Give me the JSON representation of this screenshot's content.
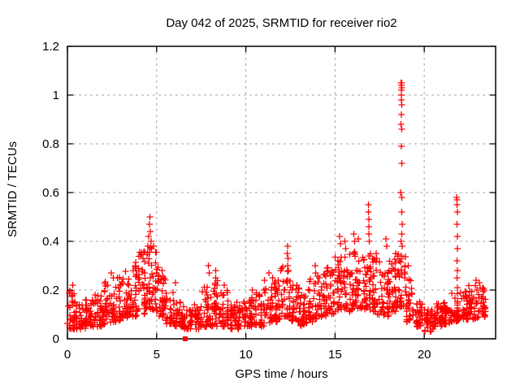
{
  "window": {
    "background": "#ffffff"
  },
  "chart_data": {
    "type": "scatter",
    "title": "Day 042 of 2025, SRMTID for receiver rio2",
    "xlabel": "GPS time / hours",
    "ylabel": "SRMTID / TECUs",
    "xlim": [
      0,
      24
    ],
    "ylim": [
      0,
      1.2
    ],
    "xticks": [
      0,
      5,
      10,
      15,
      20
    ],
    "xtick_labels": [
      "0",
      "5",
      "10",
      "15",
      "20"
    ],
    "yticks": [
      0,
      0.2,
      0.4,
      0.6,
      0.8,
      1,
      1.2
    ],
    "ytick_labels": [
      "0",
      "0.2",
      "0.4",
      "0.6",
      "0.8",
      "1",
      "1.2"
    ],
    "grid": true,
    "legend": "none",
    "marker": "plus",
    "marker_color": "#ff0000",
    "grid_color": "#a5a5a5",
    "axis_color": "#000000",
    "x_data_end": 23.45,
    "render_seed": 20250421,
    "band_segments": [
      [
        0.0,
        0.5,
        0.04,
        0.2,
        35
      ],
      [
        0.5,
        1.0,
        0.04,
        0.15,
        35
      ],
      [
        1.0,
        1.5,
        0.05,
        0.16,
        35
      ],
      [
        1.5,
        2.0,
        0.05,
        0.18,
        35
      ],
      [
        2.0,
        2.5,
        0.06,
        0.24,
        35
      ],
      [
        2.5,
        3.0,
        0.07,
        0.26,
        35
      ],
      [
        3.0,
        3.5,
        0.08,
        0.28,
        35
      ],
      [
        3.5,
        4.0,
        0.09,
        0.32,
        35
      ],
      [
        4.0,
        4.5,
        0.1,
        0.36,
        38
      ],
      [
        4.5,
        5.0,
        0.11,
        0.4,
        38
      ],
      [
        5.0,
        5.5,
        0.09,
        0.3,
        35
      ],
      [
        5.5,
        6.0,
        0.06,
        0.2,
        33
      ],
      [
        6.0,
        6.5,
        0.05,
        0.15,
        32
      ],
      [
        6.5,
        7.0,
        0.04,
        0.12,
        30
      ],
      [
        7.0,
        7.5,
        0.04,
        0.14,
        30
      ],
      [
        7.5,
        8.0,
        0.05,
        0.22,
        33
      ],
      [
        8.0,
        8.5,
        0.05,
        0.24,
        33
      ],
      [
        8.5,
        9.0,
        0.05,
        0.2,
        33
      ],
      [
        9.0,
        9.5,
        0.04,
        0.15,
        32
      ],
      [
        9.5,
        10.0,
        0.04,
        0.16,
        32
      ],
      [
        10.0,
        10.5,
        0.05,
        0.17,
        33
      ],
      [
        10.5,
        11.0,
        0.05,
        0.19,
        33
      ],
      [
        11.0,
        11.5,
        0.06,
        0.22,
        33
      ],
      [
        11.5,
        12.0,
        0.07,
        0.26,
        34
      ],
      [
        12.0,
        12.5,
        0.09,
        0.3,
        34
      ],
      [
        12.5,
        13.0,
        0.07,
        0.22,
        33
      ],
      [
        13.0,
        13.5,
        0.05,
        0.18,
        33
      ],
      [
        13.5,
        14.0,
        0.07,
        0.25,
        33
      ],
      [
        14.0,
        14.5,
        0.09,
        0.27,
        34
      ],
      [
        14.5,
        15.0,
        0.1,
        0.3,
        34
      ],
      [
        15.0,
        15.5,
        0.11,
        0.34,
        35
      ],
      [
        15.5,
        16.0,
        0.11,
        0.36,
        35
      ],
      [
        16.0,
        16.5,
        0.12,
        0.36,
        36
      ],
      [
        16.5,
        17.0,
        0.12,
        0.38,
        36
      ],
      [
        17.0,
        17.5,
        0.1,
        0.33,
        34
      ],
      [
        17.5,
        18.0,
        0.09,
        0.3,
        34
      ],
      [
        18.0,
        18.5,
        0.11,
        0.33,
        35
      ],
      [
        18.5,
        19.0,
        0.13,
        0.36,
        36
      ],
      [
        19.0,
        19.5,
        0.07,
        0.26,
        33
      ],
      [
        19.5,
        20.0,
        0.05,
        0.16,
        32
      ],
      [
        20.0,
        20.5,
        0.03,
        0.13,
        32
      ],
      [
        20.5,
        21.0,
        0.05,
        0.15,
        32
      ],
      [
        21.0,
        21.5,
        0.06,
        0.17,
        33
      ],
      [
        21.5,
        22.0,
        0.07,
        0.2,
        34
      ],
      [
        22.0,
        22.5,
        0.08,
        0.2,
        34
      ],
      [
        22.5,
        23.0,
        0.08,
        0.22,
        34
      ],
      [
        23.0,
        23.45,
        0.09,
        0.22,
        30
      ]
    ],
    "spike_points": [
      [
        0.3,
        0.22
      ],
      [
        2.45,
        0.27
      ],
      [
        2.8,
        0.25
      ],
      [
        3.8,
        0.3
      ],
      [
        3.85,
        0.28
      ],
      [
        4.5,
        0.38
      ],
      [
        4.55,
        0.42
      ],
      [
        4.6,
        0.47
      ],
      [
        4.62,
        0.5
      ],
      [
        4.65,
        0.44
      ],
      [
        4.68,
        0.4
      ],
      [
        4.72,
        0.37
      ],
      [
        5.3,
        0.28
      ],
      [
        6.05,
        0.23
      ],
      [
        7.9,
        0.3
      ],
      [
        7.95,
        0.27
      ],
      [
        8.3,
        0.28
      ],
      [
        8.32,
        0.25
      ],
      [
        8.8,
        0.22
      ],
      [
        10.35,
        0.2
      ],
      [
        11.05,
        0.24
      ],
      [
        11.3,
        0.27
      ],
      [
        11.95,
        0.28
      ],
      [
        12.33,
        0.35
      ],
      [
        12.35,
        0.38
      ],
      [
        12.36,
        0.33
      ],
      [
        12.34,
        0.3
      ],
      [
        12.38,
        0.28
      ],
      [
        13.9,
        0.3
      ],
      [
        13.92,
        0.27
      ],
      [
        15.25,
        0.42
      ],
      [
        15.3,
        0.39
      ],
      [
        15.55,
        0.4
      ],
      [
        15.6,
        0.37
      ],
      [
        16.05,
        0.43
      ],
      [
        16.1,
        0.4
      ],
      [
        16.3,
        0.41
      ],
      [
        16.88,
        0.55
      ],
      [
        16.88,
        0.52
      ],
      [
        16.89,
        0.49
      ],
      [
        16.9,
        0.46
      ],
      [
        16.9,
        0.43
      ],
      [
        16.92,
        0.4
      ],
      [
        17.3,
        0.35
      ],
      [
        17.85,
        0.41
      ],
      [
        17.9,
        0.38
      ],
      [
        18.4,
        0.35
      ],
      [
        18.7,
        1.05
      ],
      [
        18.71,
        1.04
      ],
      [
        18.73,
        1.05
      ],
      [
        18.72,
        1.02
      ],
      [
        18.74,
        1.03
      ],
      [
        18.72,
        1.0
      ],
      [
        18.71,
        0.98
      ],
      [
        18.73,
        0.96
      ],
      [
        18.72,
        0.92
      ],
      [
        18.7,
        0.88
      ],
      [
        18.74,
        0.86
      ],
      [
        18.72,
        0.79
      ],
      [
        18.73,
        0.72
      ],
      [
        18.68,
        0.6
      ],
      [
        18.75,
        0.58
      ],
      [
        18.73,
        0.52
      ],
      [
        18.76,
        0.47
      ],
      [
        18.74,
        0.43
      ],
      [
        18.7,
        0.4
      ],
      [
        18.76,
        0.38
      ],
      [
        19.1,
        0.3
      ],
      [
        21.82,
        0.58
      ],
      [
        21.84,
        0.57
      ],
      [
        21.83,
        0.55
      ],
      [
        21.85,
        0.52
      ],
      [
        21.84,
        0.47
      ],
      [
        21.86,
        0.42
      ],
      [
        21.85,
        0.37
      ],
      [
        21.83,
        0.32
      ],
      [
        21.86,
        0.28
      ],
      [
        21.84,
        0.25
      ],
      [
        21.85,
        0.21
      ],
      [
        22.9,
        0.24
      ],
      [
        23.1,
        0.23
      ]
    ],
    "special_points": [
      {
        "x": 6.6,
        "y": 0.0,
        "marker": "filled-square"
      }
    ]
  }
}
